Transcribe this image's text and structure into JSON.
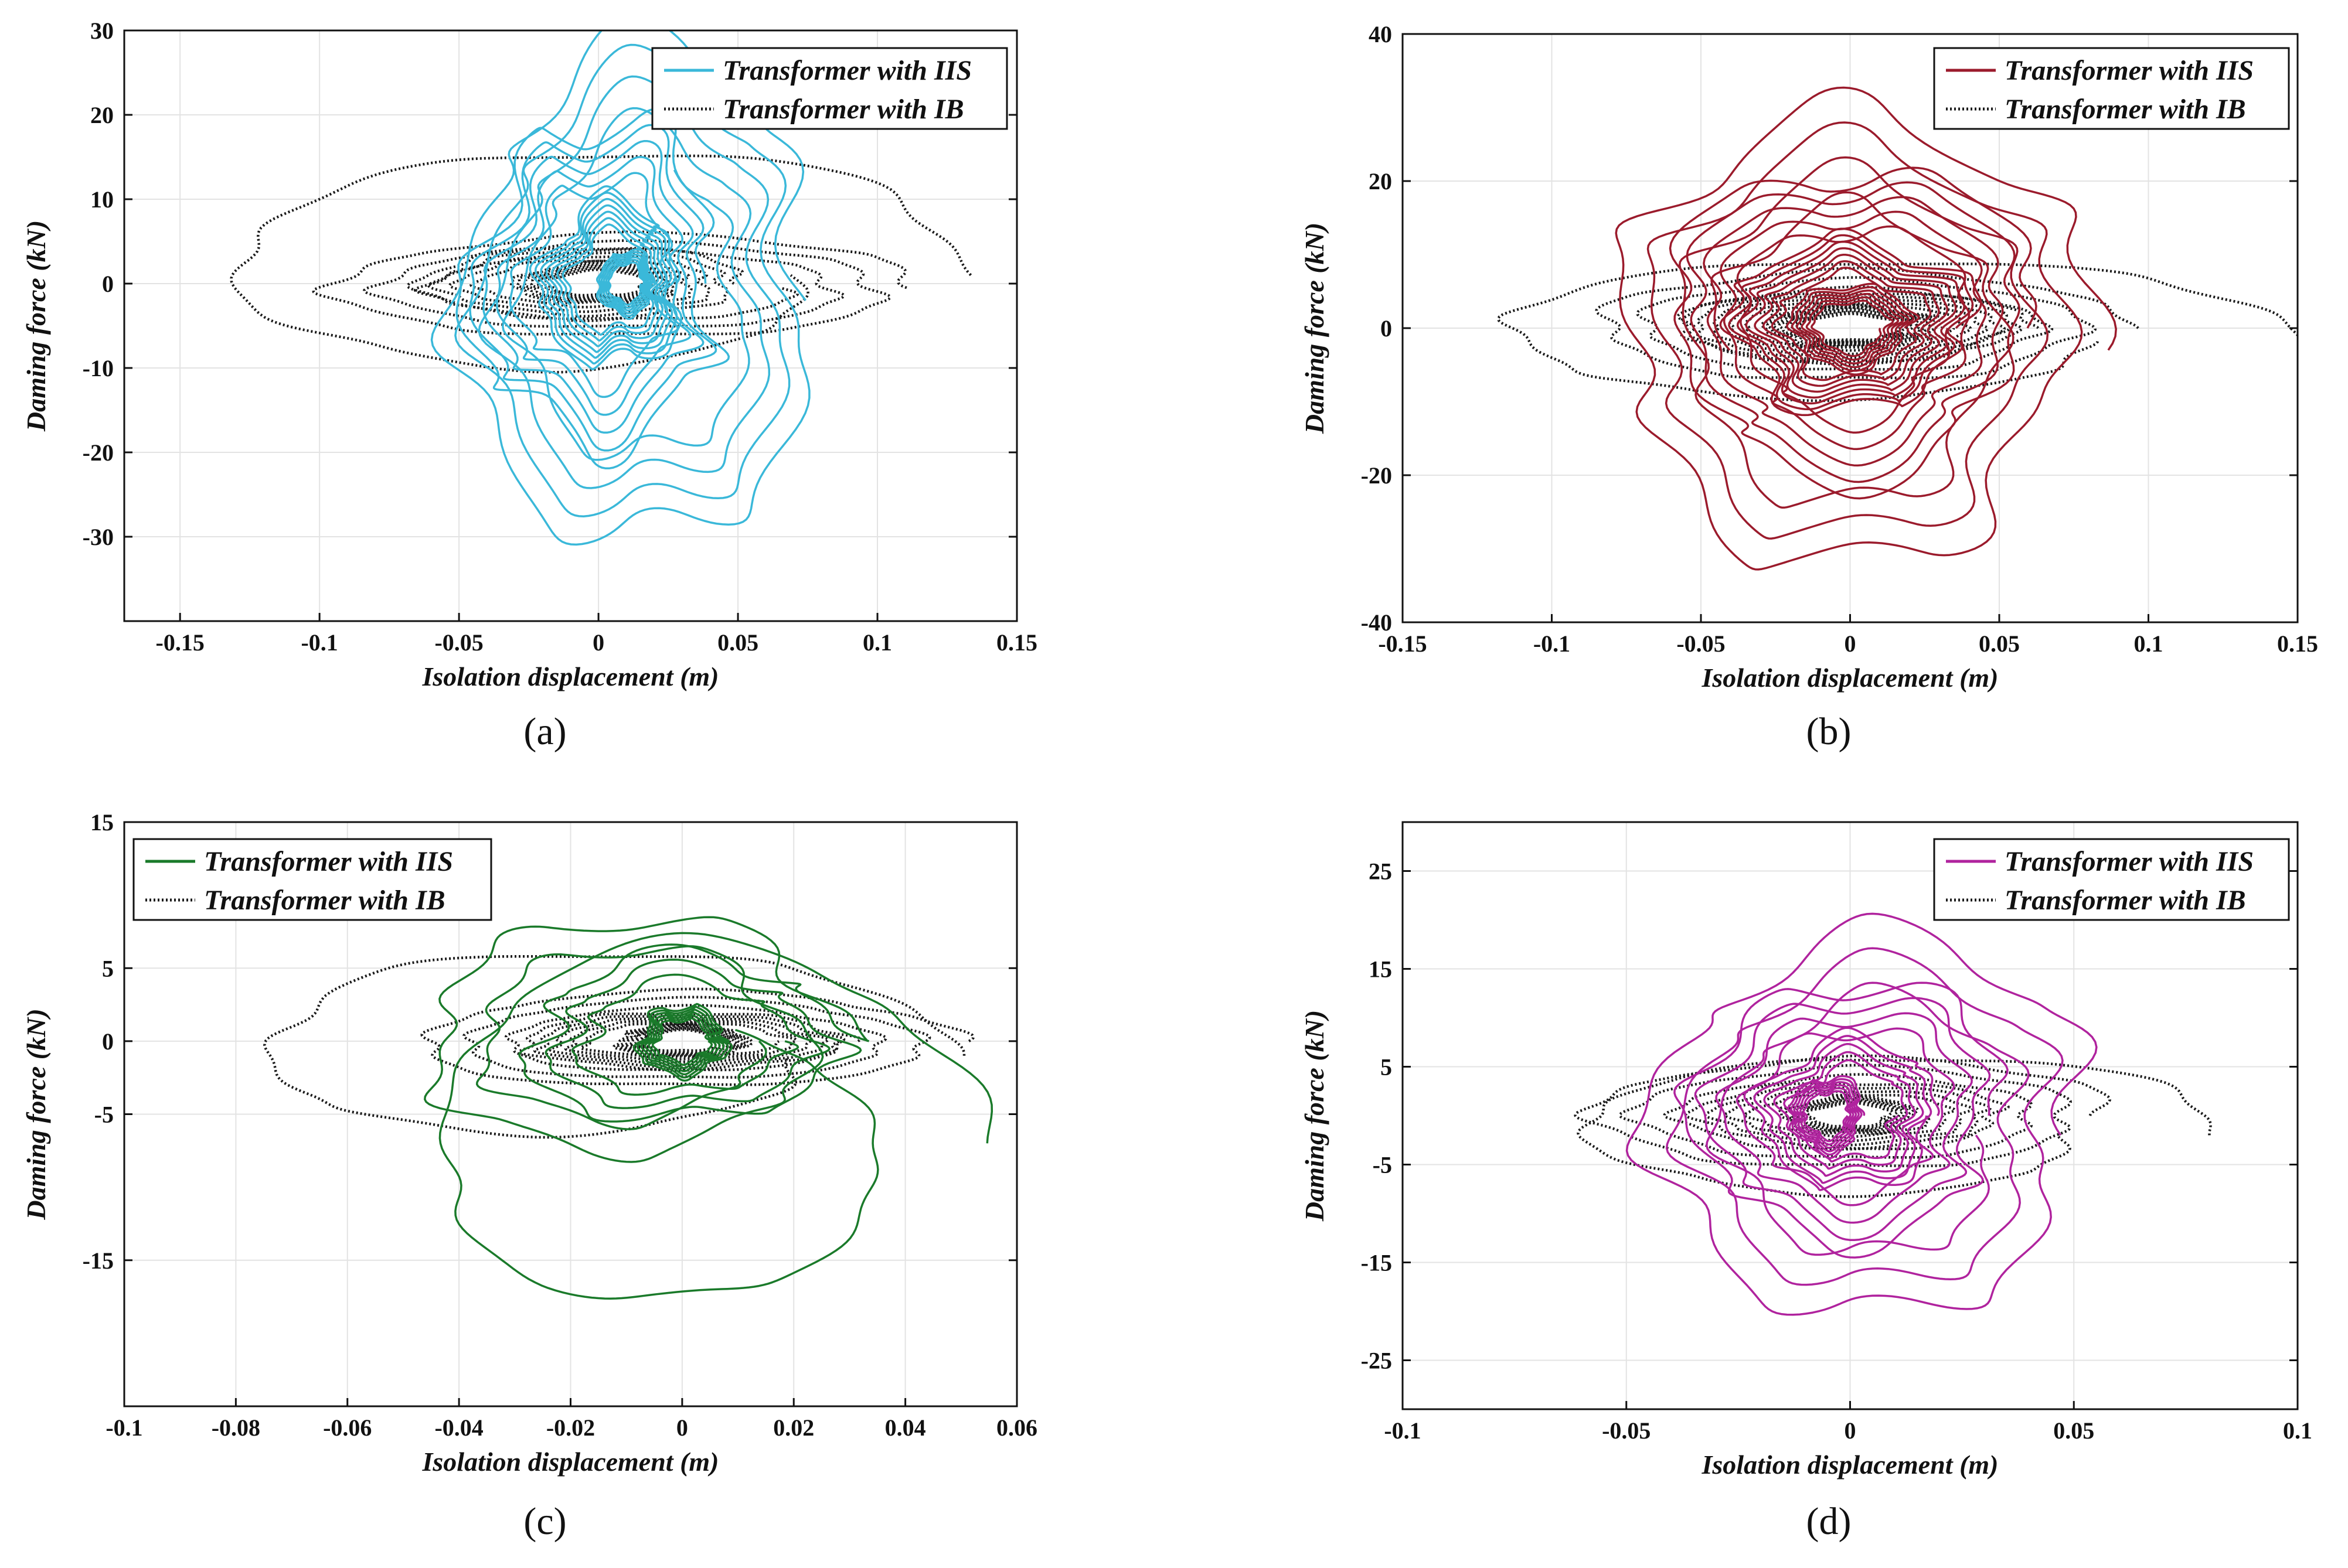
{
  "figure": {
    "panels": [
      {
        "id": "a",
        "label": "(a)"
      },
      {
        "id": "b",
        "label": "(b)"
      },
      {
        "id": "c",
        "label": "(c)"
      },
      {
        "id": "d",
        "label": "(d)"
      }
    ]
  },
  "chart_data": [
    {
      "type": "line",
      "panel": "(a)",
      "title": "",
      "xlabel": "Isolation displacement (m)",
      "ylabel": "Daming force (kN)",
      "xlim": [
        -0.17,
        0.15
      ],
      "ylim": [
        -40,
        30
      ],
      "xticks": [
        -0.15,
        -0.1,
        -0.05,
        0,
        0.05,
        0.1,
        0.15
      ],
      "xtick_labels": [
        "-0.15",
        "-0.1",
        "-0.05",
        "0",
        "0.05",
        "0.1",
        "0.15"
      ],
      "yticks": [
        30,
        20,
        10,
        0,
        -10,
        -20,
        -30
      ],
      "ytick_labels": [
        "30",
        "20",
        "10",
        "0",
        "-10",
        "-20",
        "-30"
      ],
      "grid": true,
      "legend_position": "top-right",
      "series": [
        {
          "name": "Transformer with IIS",
          "color": "#3ab8d9",
          "style": "solid",
          "loops": [
            {
              "cx": 0.015,
              "cy": -2,
              "rx": 0.065,
              "ry": 31,
              "turns": 4.2,
              "noise": 0.22
            },
            {
              "cx": 0.0,
              "cy": 0,
              "rx": 0.045,
              "ry": 20,
              "turns": 5,
              "noise": 0.3
            },
            {
              "cx": 0.005,
              "cy": 0,
              "rx": 0.025,
              "ry": 10,
              "turns": 7,
              "noise": 0.3
            },
            {
              "cx": 0.01,
              "cy": 0,
              "rx": 0.01,
              "ry": 4,
              "turns": 6,
              "noise": 0.2
            }
          ]
        },
        {
          "name": "Transformer with IB",
          "color": "#1a1a1a",
          "style": "dotted",
          "loops": [
            {
              "cx": -0.01,
              "cy": 1,
              "rx": 0.15,
              "ry": 16.5,
              "turns": 1,
              "noise": 0.08
            },
            {
              "cx": 0.01,
              "cy": -0.5,
              "rx": 0.11,
              "ry": 6.5,
              "turns": 3,
              "noise": 0.1
            },
            {
              "cx": -0.005,
              "cy": 0,
              "rx": 0.06,
              "ry": 4.5,
              "turns": 4,
              "noise": 0.12
            },
            {
              "cx": 0.0,
              "cy": 0,
              "rx": 0.03,
              "ry": 2.5,
              "turns": 6,
              "noise": 0.15
            }
          ]
        }
      ]
    },
    {
      "type": "line",
      "panel": "(b)",
      "title": "",
      "xlabel": "Isolation displacement (m)",
      "ylabel": "Daming force (kN)",
      "xlim": [
        -0.15,
        0.15
      ],
      "ylim": [
        -40,
        40
      ],
      "xticks": [
        -0.15,
        -0.1,
        -0.05,
        0,
        0.05,
        0.1,
        0.15
      ],
      "xtick_labels": [
        "-0.15",
        "-0.1",
        "-0.05",
        "0",
        "0.05",
        "0.1",
        "0.15"
      ],
      "yticks": [
        40,
        20,
        0,
        -20,
        -40
      ],
      "ytick_labels": [
        "40",
        "20",
        "0",
        "-20",
        "-40"
      ],
      "grid": true,
      "legend_position": "top-right",
      "series": [
        {
          "name": "Transformer with IIS",
          "color": "#9b1b2c",
          "style": "solid",
          "loops": [
            {
              "cx": 0.0,
              "cy": -3,
              "rx": 0.08,
              "ry": 33,
              "turns": 3.5,
              "noise": 0.2
            },
            {
              "cx": 0.0,
              "cy": 0,
              "rx": 0.06,
              "ry": 22,
              "turns": 5,
              "noise": 0.22
            },
            {
              "cx": 0.0,
              "cy": 0,
              "rx": 0.04,
              "ry": 12,
              "turns": 7,
              "noise": 0.25
            },
            {
              "cx": 0.0,
              "cy": 0,
              "rx": 0.02,
              "ry": 6,
              "turns": 6,
              "noise": 0.2
            }
          ]
        },
        {
          "name": "Transformer with IB",
          "color": "#1a1a1a",
          "style": "dotted",
          "loops": [
            {
              "cx": 0.0,
              "cy": -1.5,
              "rx": 0.145,
              "ry": 12,
              "turns": 1,
              "noise": 0.08
            },
            {
              "cx": 0.0,
              "cy": 0,
              "rx": 0.09,
              "ry": 8,
              "turns": 3,
              "noise": 0.1
            },
            {
              "cx": 0.0,
              "cy": 0,
              "rx": 0.06,
              "ry": 5,
              "turns": 5,
              "noise": 0.1
            },
            {
              "cx": 0.0,
              "cy": 0,
              "rx": 0.03,
              "ry": 3,
              "turns": 7,
              "noise": 0.15
            }
          ]
        }
      ]
    },
    {
      "type": "line",
      "panel": "(c)",
      "title": "",
      "xlabel": "Isolation displacement (m)",
      "ylabel": "Daming force (kN)",
      "xlim": [
        -0.1,
        0.06
      ],
      "ylim": [
        -25,
        15
      ],
      "xticks": [
        -0.1,
        -0.08,
        -0.06,
        -0.04,
        -0.02,
        0,
        0.02,
        0.04,
        0.06
      ],
      "xtick_labels": [
        "-0.1",
        "-0.08",
        "-0.06",
        "-0.04",
        "-0.02",
        "0",
        "0.02",
        "0.04",
        "0.06"
      ],
      "yticks": [
        15,
        5,
        0,
        -5,
        -15
      ],
      "ytick_labels": [
        "15",
        "5",
        "0",
        "-5",
        "-15"
      ],
      "grid": true,
      "legend_position": "top-left",
      "series": [
        {
          "name": "Transformer with IIS",
          "color": "#1a7a2a",
          "style": "solid",
          "loops": [
            {
              "cx": 0.0,
              "cy": -7,
              "rx": 0.054,
              "ry": 15,
              "turns": 1.2,
              "noise": 0.1
            },
            {
              "cx": -0.01,
              "cy": 0,
              "rx": 0.04,
              "ry": 9,
              "turns": 2,
              "noise": 0.18
            },
            {
              "cx": 0.0,
              "cy": 0,
              "rx": 0.03,
              "ry": 6,
              "turns": 3,
              "noise": 0.25
            },
            {
              "cx": 0.0,
              "cy": 0,
              "rx": 0.008,
              "ry": 2.5,
              "turns": 6,
              "noise": 0.25
            }
          ]
        },
        {
          "name": "Transformer with IB",
          "color": "#1a1a1a",
          "style": "dotted",
          "loops": [
            {
              "cx": -0.02,
              "cy": -1,
              "rx": 0.07,
              "ry": 8,
              "turns": 1,
              "noise": 0.08
            },
            {
              "cx": 0.0,
              "cy": 0,
              "rx": 0.05,
              "ry": 3.5,
              "turns": 3,
              "noise": 0.1
            },
            {
              "cx": 0.0,
              "cy": 0,
              "rx": 0.03,
              "ry": 2,
              "turns": 5,
              "noise": 0.12
            },
            {
              "cx": 0.0,
              "cy": 0,
              "rx": 0.012,
              "ry": 1.2,
              "turns": 7,
              "noise": 0.15
            }
          ]
        }
      ]
    },
    {
      "type": "line",
      "panel": "(d)",
      "title": "",
      "xlabel": "Isolation displacement (m)",
      "ylabel": "Daming force (kN)",
      "xlim": [
        -0.1,
        0.1
      ],
      "ylim": [
        -30,
        30
      ],
      "xticks": [
        -0.1,
        -0.05,
        0,
        0.05,
        0.1
      ],
      "xtick_labels": [
        "-0.1",
        "-0.05",
        "0",
        "0.05",
        "0.1"
      ],
      "yticks": [
        25,
        15,
        5,
        -5,
        -15,
        -25
      ],
      "ytick_labels": [
        "25",
        "15",
        "5",
        "-5",
        "-15",
        "-25"
      ],
      "grid": true,
      "legend_position": "top-right",
      "series": [
        {
          "name": "Transformer with IIS",
          "color": "#b0239e",
          "style": "solid",
          "loops": [
            {
              "cx": 0.005,
              "cy": -2,
              "rx": 0.05,
              "ry": 21,
              "turns": 3,
              "noise": 0.2
            },
            {
              "cx": 0.0,
              "cy": 0,
              "rx": 0.035,
              "ry": 14,
              "turns": 4,
              "noise": 0.22
            },
            {
              "cx": 0.0,
              "cy": 0,
              "rx": 0.02,
              "ry": 8,
              "turns": 5,
              "noise": 0.25
            },
            {
              "cx": -0.005,
              "cy": 0,
              "rx": 0.008,
              "ry": 4,
              "turns": 6,
              "noise": 0.25
            }
          ]
        },
        {
          "name": "Transformer with IB",
          "color": "#1a1a1a",
          "style": "dotted",
          "loops": [
            {
              "cx": 0.005,
              "cy": -2,
              "rx": 0.08,
              "ry": 9,
              "turns": 1,
              "noise": 0.08
            },
            {
              "cx": 0.0,
              "cy": 0,
              "rx": 0.06,
              "ry": 6,
              "turns": 3,
              "noise": 0.1
            },
            {
              "cx": 0.0,
              "cy": 0,
              "rx": 0.035,
              "ry": 3.5,
              "turns": 4,
              "noise": 0.12
            },
            {
              "cx": 0.0,
              "cy": 0,
              "rx": 0.015,
              "ry": 2,
              "turns": 6,
              "noise": 0.15
            }
          ]
        }
      ]
    }
  ]
}
